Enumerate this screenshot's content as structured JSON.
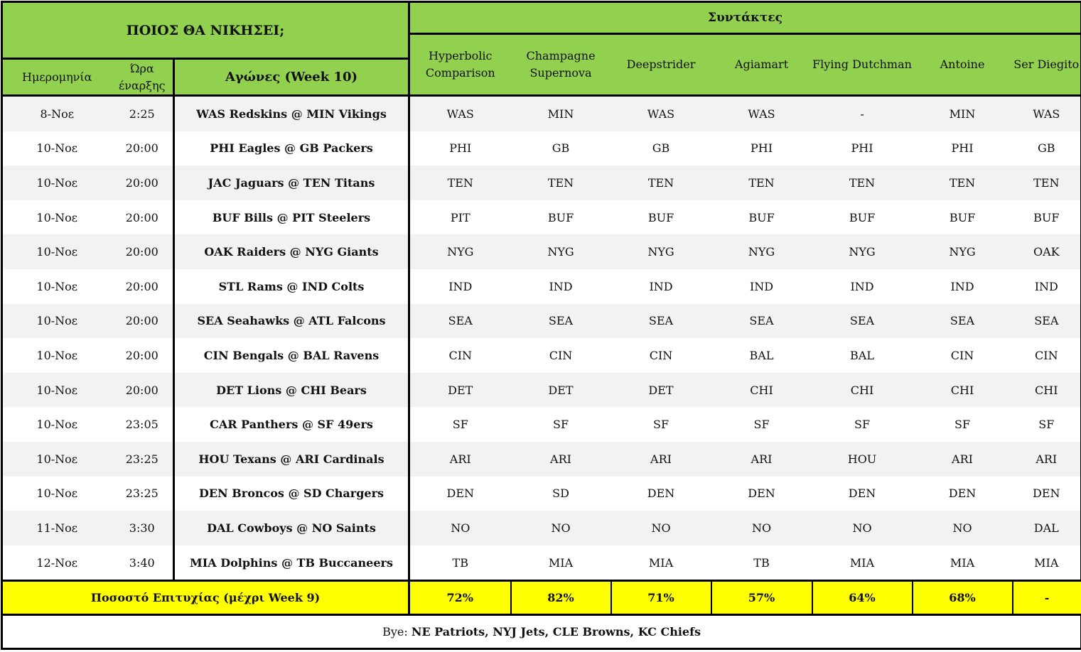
{
  "header": {
    "title": "ΠΟΙΟΣ ΘΑ ΝΙΚΗΣΕΙ;",
    "contributors_label": "Συντάκτες",
    "date_label": "Ημερομηνία",
    "time_label_1": "Ώρα",
    "time_label_2": "έναρξης",
    "match_label": "Αγώνες (Week 10)",
    "contributors": [
      [
        "Hyperbolic",
        "Comparison"
      ],
      [
        "Champagne",
        "Supernova"
      ],
      [
        "Deepstrider"
      ],
      [
        "Agiamart"
      ],
      [
        "Flying Dutchman"
      ],
      [
        "Antoine"
      ],
      [
        "Ser Diegito"
      ]
    ]
  },
  "rows": [
    {
      "date": "8-Νοε",
      "time": "2:25",
      "match": "WAS Redskins @ MIN Vikings",
      "picks": [
        "WAS",
        "MIN",
        "WAS",
        "WAS",
        "-",
        "MIN",
        "WAS"
      ]
    },
    {
      "date": "10-Νοε",
      "time": "20:00",
      "match": "PHI Eagles @ GB Packers",
      "picks": [
        "PHI",
        "GB",
        "GB",
        "PHI",
        "PHI",
        "PHI",
        "GB"
      ]
    },
    {
      "date": "10-Νοε",
      "time": "20:00",
      "match": "JAC Jaguars @ TEN Titans",
      "picks": [
        "TEN",
        "TEN",
        "TEN",
        "TEN",
        "TEN",
        "TEN",
        "TEN"
      ]
    },
    {
      "date": "10-Νοε",
      "time": "20:00",
      "match": "BUF Bills @ PIT Steelers",
      "picks": [
        "PIT",
        "BUF",
        "BUF",
        "BUF",
        "BUF",
        "BUF",
        "BUF"
      ]
    },
    {
      "date": "10-Νοε",
      "time": "20:00",
      "match": "OAK Raiders @ NYG Giants",
      "picks": [
        "NYG",
        "NYG",
        "NYG",
        "NYG",
        "NYG",
        "NYG",
        "OAK"
      ]
    },
    {
      "date": "10-Νοε",
      "time": "20:00",
      "match": "STL Rams @ IND Colts",
      "picks": [
        "IND",
        "IND",
        "IND",
        "IND",
        "IND",
        "IND",
        "IND"
      ]
    },
    {
      "date": "10-Νοε",
      "time": "20:00",
      "match": "SEA Seahawks @ ATL Falcons",
      "picks": [
        "SEA",
        "SEA",
        "SEA",
        "SEA",
        "SEA",
        "SEA",
        "SEA"
      ]
    },
    {
      "date": "10-Νοε",
      "time": "20:00",
      "match": "CIN Bengals @ BAL Ravens",
      "picks": [
        "CIN",
        "CIN",
        "CIN",
        "BAL",
        "BAL",
        "CIN",
        "CIN"
      ]
    },
    {
      "date": "10-Νοε",
      "time": "20:00",
      "match": "DET Lions @ CHI Bears",
      "picks": [
        "DET",
        "DET",
        "DET",
        "CHI",
        "CHI",
        "CHI",
        "CHI"
      ]
    },
    {
      "date": "10-Νοε",
      "time": "23:05",
      "match": "CAR Panthers @ SF 49ers",
      "picks": [
        "SF",
        "SF",
        "SF",
        "SF",
        "SF",
        "SF",
        "SF"
      ]
    },
    {
      "date": "10-Νοε",
      "time": "23:25",
      "match": "HOU Texans @ ARI Cardinals",
      "picks": [
        "ARI",
        "ARI",
        "ARI",
        "ARI",
        "HOU",
        "ARI",
        "ARI"
      ]
    },
    {
      "date": "10-Νοε",
      "time": "23:25",
      "match": "DEN Broncos @ SD Chargers",
      "picks": [
        "DEN",
        "SD",
        "DEN",
        "DEN",
        "DEN",
        "DEN",
        "DEN"
      ]
    },
    {
      "date": "11-Νοε",
      "time": "3:30",
      "match": "DAL Cowboys @ NO Saints",
      "picks": [
        "NO",
        "NO",
        "NO",
        "NO",
        "NO",
        "NO",
        "DAL"
      ]
    },
    {
      "date": "12-Νοε",
      "time": "3:40",
      "match": "MIA Dolphins @ TB Buccaneers",
      "picks": [
        "TB",
        "MIA",
        "MIA",
        "TB",
        "MIA",
        "MIA",
        "MIA"
      ]
    }
  ],
  "success": {
    "label": "Ποσοστό Επιτυχίας (μέχρι Week 9)",
    "values": [
      "72%",
      "82%",
      "71%",
      "57%",
      "64%",
      "68%",
      "-"
    ]
  },
  "bye": {
    "label": "Bye:",
    "teams": "NE Patriots, NYJ Jets, CLE Browns, KC Chiefs"
  },
  "colors": {
    "header_green": "#92d050",
    "highlight_yellow": "#ffff00",
    "row_alt": "#f2f2f2"
  }
}
